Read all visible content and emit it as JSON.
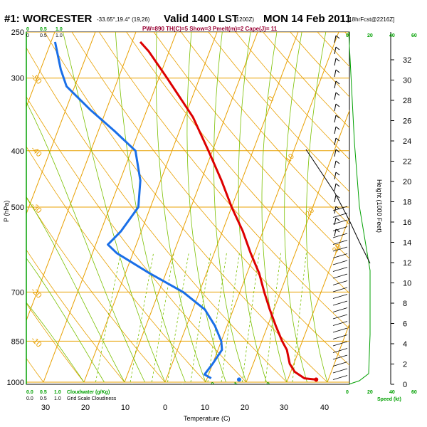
{
  "title": {
    "station": "#1: WORCESTER",
    "coords": "-33.65°,19.4° (19,26)",
    "valid": "Valid 1400 LST",
    "utc": "(1200Z)",
    "date": "MON 14 Feb 2011",
    "fcst": "[18hrFcst@2216Z]"
  },
  "subtitle": "PW=890 TH(C)=5 Show=3 Pmelt(m)=2 Cape(J)= 11",
  "colors": {
    "temperature": "#dd0000",
    "dewpoint": "#1a6fe8",
    "isotherm": "#e8a000",
    "dry_adiabat": "#e8a000",
    "moist_adiabat": "#7ac000",
    "mixing_ratio": "#7ac000",
    "green_text": "#00a000",
    "wind_profile": "#00a000"
  },
  "labels": {
    "cloudwater": "Cloudwater (g/Kg)",
    "cloudiness": "Grid Scale Cloudiness",
    "top_cloud_ticks": [
      "0",
      "0.5",
      "1.0"
    ],
    "top_cloud_ticks_black": [
      "0",
      "0.5",
      "1.0"
    ],
    "bottom_cloud_ticks": [
      "0.0",
      "0.5",
      "1.0"
    ],
    "bottom_cloud_ticks_black": [
      "0.0",
      "0.5",
      "1.0"
    ],
    "speed_label": "Speed (kt)",
    "speed_ticks_top": [
      "0",
      "20",
      "40",
      "60"
    ],
    "speed_ticks_bottom": [
      "0",
      "20",
      "40",
      "60"
    ]
  },
  "chart_data": {
    "type": "skew-t",
    "xlabel": "Temperature (C)",
    "ylabel": "P (hPa)",
    "y2label": "Height (1000 Feet)",
    "p_range": [
      250,
      1000
    ],
    "p_ticks": [
      250,
      300,
      400,
      500,
      700,
      850,
      1000
    ],
    "t_ticks": [
      30,
      20,
      10,
      0,
      10,
      20,
      30,
      40
    ],
    "height_ticks": [
      0,
      2,
      4,
      6,
      8,
      10,
      12,
      14,
      16,
      18,
      20,
      22,
      24,
      26,
      28,
      30,
      32
    ],
    "isotherm_labels": [
      "-50",
      "-40",
      "-30",
      "-20",
      "-10",
      "0",
      "10",
      "20",
      "30"
    ],
    "mixing_ratio_labels": [
      "4",
      "6",
      "10",
      "14",
      "20"
    ],
    "temperature": [
      {
        "p": 990,
        "t": 37
      },
      {
        "p": 985,
        "t": 34
      },
      {
        "p": 960,
        "t": 31
      },
      {
        "p": 930,
        "t": 29
      },
      {
        "p": 880,
        "t": 27
      },
      {
        "p": 850,
        "t": 25
      },
      {
        "p": 800,
        "t": 22
      },
      {
        "p": 750,
        "t": 19
      },
      {
        "p": 700,
        "t": 16
      },
      {
        "p": 650,
        "t": 13
      },
      {
        "p": 600,
        "t": 9
      },
      {
        "p": 550,
        "t": 5
      },
      {
        "p": 500,
        "t": 0
      },
      {
        "p": 450,
        "t": -5
      },
      {
        "p": 400,
        "t": -11
      },
      {
        "p": 350,
        "t": -18
      },
      {
        "p": 300,
        "t": -28
      },
      {
        "p": 270,
        "t": -35
      },
      {
        "p": 260,
        "t": -38
      }
    ],
    "dewpoint": [
      {
        "p": 985,
        "t": 11
      },
      {
        "p": 970,
        "t": 9
      },
      {
        "p": 930,
        "t": 10
      },
      {
        "p": 880,
        "t": 11
      },
      {
        "p": 850,
        "t": 10
      },
      {
        "p": 800,
        "t": 7
      },
      {
        "p": 750,
        "t": 3
      },
      {
        "p": 700,
        "t": -4
      },
      {
        "p": 650,
        "t": -14
      },
      {
        "p": 600,
        "t": -24
      },
      {
        "p": 580,
        "t": -27
      },
      {
        "p": 550,
        "t": -25
      },
      {
        "p": 500,
        "t": -23
      },
      {
        "p": 450,
        "t": -25
      },
      {
        "p": 400,
        "t": -29
      },
      {
        "p": 370,
        "t": -36
      },
      {
        "p": 340,
        "t": -44
      },
      {
        "p": 310,
        "t": -52
      },
      {
        "p": 290,
        "t": -55
      },
      {
        "p": 260,
        "t": -59
      }
    ],
    "surface_temperature_marker": {
      "p": 990,
      "t": 37
    },
    "surface_dewpoint_marker": {
      "p": 990,
      "t": 18
    }
  }
}
